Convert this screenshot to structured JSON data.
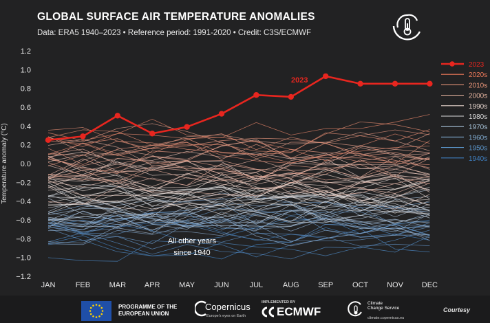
{
  "header": {
    "title": "GLOBAL SURFACE AIR TEMPERATURE ANOMALIES",
    "subtitle": "Data: ERA5 1940–2023 • Reference period: 1991-2020 • Credit: C3S/ECMWF"
  },
  "chart_data": {
    "type": "line",
    "title": "GLOBAL SURFACE AIR TEMPERATURE ANOMALIES",
    "subtitle": "Data: ERA5 1940–2023 • Reference period: 1991-2020 • Credit: C3S/ECMWF",
    "xlabel": "",
    "ylabel": "Temperature anomaly (°C)",
    "categories": [
      "JAN",
      "FEB",
      "MAR",
      "APR",
      "MAY",
      "JUN",
      "JUL",
      "AUG",
      "SEP",
      "OCT",
      "NOV",
      "DEC"
    ],
    "ylim": [
      -1.2,
      1.2
    ],
    "yticks": [
      "1.2",
      "1.0",
      "0.8",
      "0.6",
      "0.4",
      "0.2",
      "0.0",
      "−0.2",
      "−0.4",
      "−0.6",
      "−0.8",
      "−1.0",
      "−1.2"
    ],
    "highlight": {
      "name": "2023",
      "label": "2023",
      "color": "#e8261f",
      "values": [
        0.25,
        0.29,
        0.51,
        0.32,
        0.39,
        0.53,
        0.73,
        0.71,
        0.93,
        0.85,
        0.85,
        0.85
      ]
    },
    "background_annotation": [
      "All other years",
      "since 1940"
    ],
    "legend": {
      "position": "right",
      "entries": [
        {
          "name": "2023",
          "color": "#e8261f"
        },
        {
          "name": "2020s",
          "color": "#f07a5a"
        },
        {
          "name": "2010s",
          "color": "#e89478"
        },
        {
          "name": "2000s",
          "color": "#e4b39e"
        },
        {
          "name": "1990s",
          "color": "#e6d5cd"
        },
        {
          "name": "1980s",
          "color": "#dcdcdc"
        },
        {
          "name": "1970s",
          "color": "#aac6dc"
        },
        {
          "name": "1960s",
          "color": "#84b0d6"
        },
        {
          "name": "1950s",
          "color": "#5c97cc"
        },
        {
          "name": "1940s",
          "color": "#3f7fc0"
        }
      ]
    },
    "grid": false
  },
  "footer": {
    "eu_line1": "PROGRAMME OF THE",
    "eu_line2": "EUROPEAN UNION",
    "copernicus": "Copernicus",
    "copernicus_tag": "Europe's eyes on Earth",
    "ecmwf_tag": "IMPLEMENTED BY",
    "ecmwf": "ECMWF",
    "c3s_line1": "Climate",
    "c3s_line2": "Change Service",
    "c3s_url": "climate.copernicus.eu",
    "courtesy": "Courtesy"
  }
}
